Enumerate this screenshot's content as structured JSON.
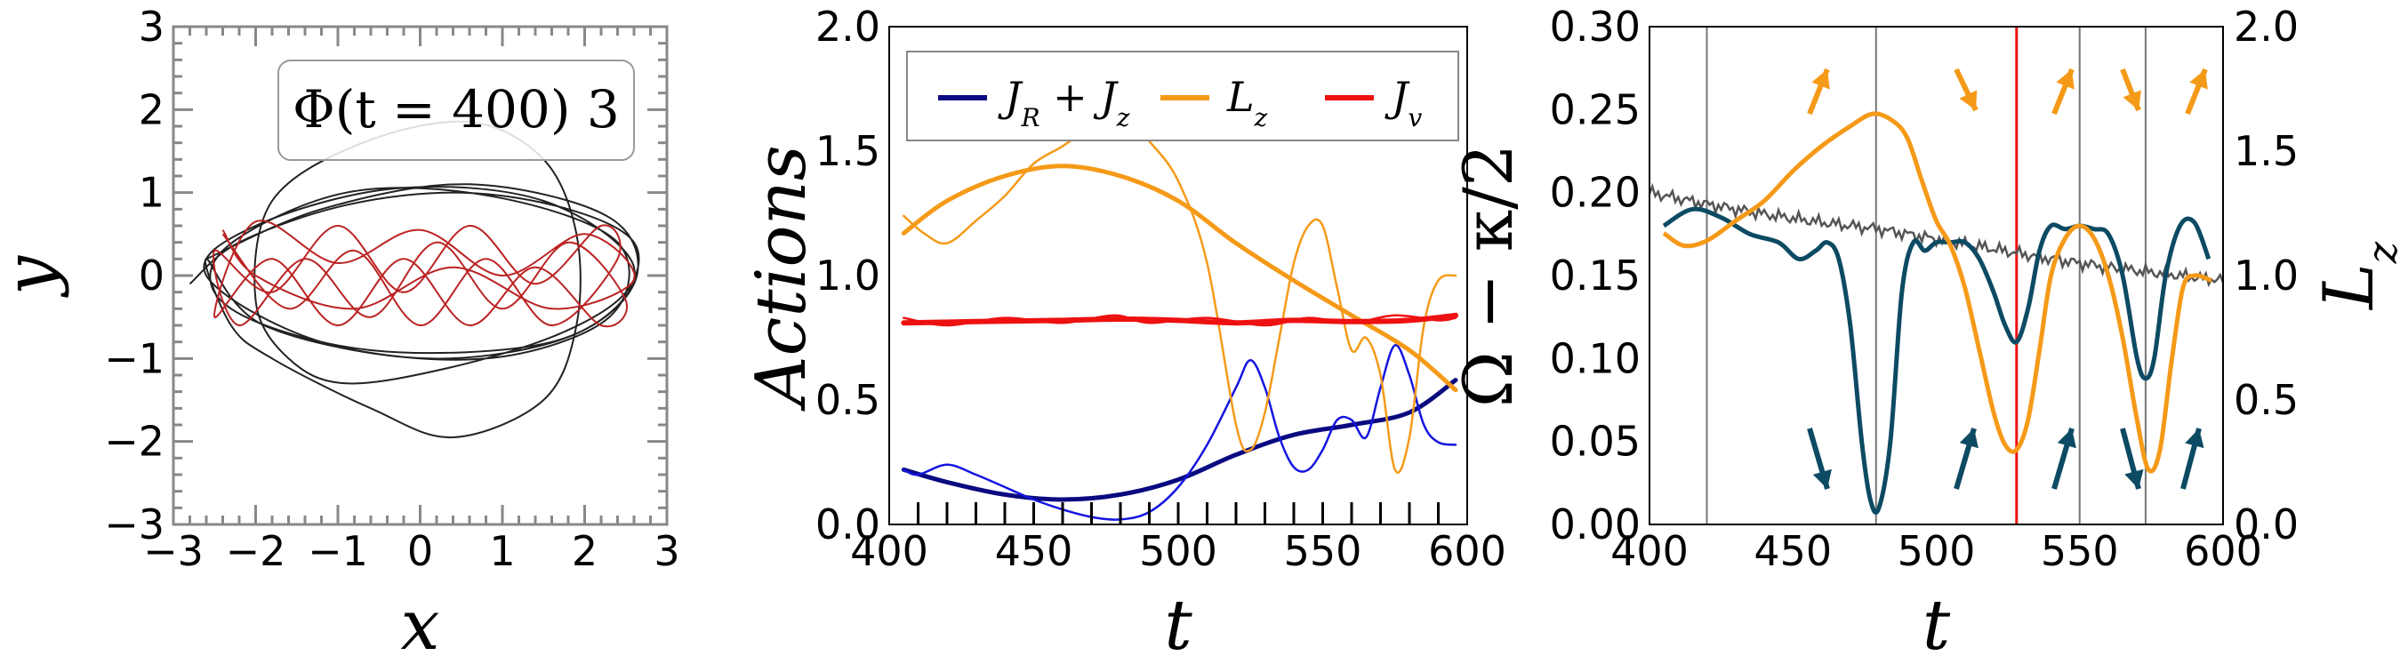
{
  "chart_data": [
    {
      "type": "line",
      "panel": "orbit",
      "xlabel": "x",
      "ylabel": "y",
      "xlim": [
        -3,
        3
      ],
      "ylim": [
        -3,
        3
      ],
      "xticks": [
        "−3",
        "−2",
        "−1",
        "0",
        "1",
        "2",
        "3"
      ],
      "yticks": [
        "−3",
        "−2",
        "−1",
        "0",
        "1",
        "2",
        "3"
      ],
      "annotation": "Φ(t = 400) 3",
      "series": [
        {
          "color": "#222222",
          "points": [
            [
              -2.6,
              0.2
            ],
            [
              -1.2,
              0.8
            ],
            [
              0.6,
              1.1
            ],
            [
              2.3,
              0.7
            ],
            [
              2.6,
              -0.1
            ],
            [
              1.6,
              -0.8
            ],
            [
              -0.6,
              -0.9
            ],
            [
              -2.3,
              -0.4
            ],
            [
              -2.4,
              0.3
            ],
            [
              -0.9,
              1.0
            ],
            [
              0.9,
              0.95
            ],
            [
              2.4,
              0.4
            ],
            [
              2.3,
              -0.5
            ],
            [
              0.8,
              -1.0
            ],
            [
              -1.2,
              -0.8
            ],
            [
              -2.6,
              0.0
            ],
            [
              -2.0,
              0.6
            ],
            [
              -0.3,
              1.05
            ],
            [
              1.5,
              0.9
            ],
            [
              2.6,
              0.1
            ],
            [
              1.9,
              -0.7
            ],
            [
              0.1,
              -1.0
            ],
            [
              -1.9,
              -0.6
            ],
            [
              -2.6,
              0.2
            ],
            [
              -2.3,
              -0.6
            ],
            [
              -1.8,
              -1.0
            ],
            [
              -0.6,
              -1.6
            ],
            [
              0.4,
              -1.95
            ],
            [
              1.5,
              -1.5
            ],
            [
              1.9,
              -0.6
            ],
            [
              1.9,
              0.5
            ],
            [
              1.5,
              1.4
            ],
            [
              0.6,
              1.85
            ],
            [
              -0.7,
              1.6
            ],
            [
              -1.8,
              0.9
            ],
            [
              -2.0,
              -0.3
            ],
            [
              -1.6,
              -1.0
            ],
            [
              -0.9,
              -1.3
            ],
            [
              0.4,
              -1.1
            ],
            [
              1.7,
              -0.7
            ],
            [
              2.5,
              -0.2
            ],
            [
              2.6,
              0.4
            ],
            [
              1.8,
              0.8
            ],
            [
              0.5,
              1.0
            ],
            [
              -0.9,
              0.85
            ],
            [
              -2.2,
              0.4
            ],
            [
              -2.8,
              -0.1
            ]
          ]
        },
        {
          "color": "#bb2222",
          "points": [
            [
              -2.4,
              0.5
            ],
            [
              -1.6,
              -0.4
            ],
            [
              -0.8,
              0.3
            ],
            [
              0.0,
              -0.6
            ],
            [
              0.8,
              0.2
            ],
            [
              1.6,
              -0.6
            ],
            [
              2.4,
              0.2
            ],
            [
              2.2,
              0.6
            ],
            [
              1.4,
              -0.1
            ],
            [
              0.6,
              0.6
            ],
            [
              -0.2,
              -0.2
            ],
            [
              -1.0,
              0.6
            ],
            [
              -1.8,
              -0.2
            ],
            [
              -2.5,
              0.3
            ],
            [
              -2.2,
              -0.6
            ],
            [
              -1.4,
              0.2
            ],
            [
              -0.6,
              -0.5
            ],
            [
              0.2,
              0.4
            ],
            [
              1.0,
              -0.4
            ],
            [
              1.8,
              0.4
            ],
            [
              2.5,
              -0.3
            ],
            [
              2.2,
              -0.6
            ],
            [
              1.4,
              0.1
            ],
            [
              0.6,
              -0.6
            ],
            [
              -0.2,
              0.2
            ],
            [
              -1.0,
              -0.6
            ],
            [
              -1.8,
              0.2
            ],
            [
              -2.5,
              -0.5
            ],
            [
              -2.0,
              0.65
            ],
            [
              -1.0,
              0.15
            ],
            [
              0.0,
              0.55
            ],
            [
              1.0,
              0.0
            ],
            [
              2.0,
              0.5
            ],
            [
              2.6,
              -0.05
            ],
            [
              1.6,
              -0.4
            ],
            [
              0.4,
              0.1
            ],
            [
              -0.8,
              -0.4
            ],
            [
              -2.0,
              0.0
            ],
            [
              -2.4,
              0.55
            ]
          ]
        }
      ]
    },
    {
      "type": "line",
      "panel": "actions",
      "xlabel": "t",
      "ylabel": "Actions",
      "xlim": [
        400,
        600
      ],
      "ylim": [
        0,
        2
      ],
      "xticks": [
        "400",
        "450",
        "500",
        "550",
        "600"
      ],
      "yticks": [
        "0.0",
        "0.5",
        "1.0",
        "1.5",
        "2.0"
      ],
      "legend": [
        "J_R + J_z",
        "L_z",
        "J_v"
      ],
      "legend_loc": "top",
      "series": [
        {
          "name": "J_R + J_z",
          "color": "#0a0a80",
          "width": 5,
          "x": [
            405,
            420,
            440,
            460,
            480,
            500,
            520,
            540,
            560,
            580,
            596
          ],
          "y": [
            0.22,
            0.17,
            0.12,
            0.1,
            0.12,
            0.18,
            0.28,
            0.36,
            0.4,
            0.45,
            0.58
          ]
        },
        {
          "name": "J_R + J_z",
          "color": "#1515e0",
          "width": 2.5,
          "x": [
            405,
            410,
            420,
            430,
            440,
            450,
            460,
            470,
            480,
            490,
            500,
            510,
            520,
            525,
            530,
            535,
            540,
            545,
            550,
            555,
            560,
            565,
            570,
            575,
            580,
            585,
            590,
            596
          ],
          "y": [
            0.22,
            0.2,
            0.24,
            0.2,
            0.15,
            0.1,
            0.06,
            0.03,
            0.02,
            0.05,
            0.15,
            0.32,
            0.55,
            0.66,
            0.55,
            0.35,
            0.23,
            0.22,
            0.3,
            0.42,
            0.42,
            0.35,
            0.55,
            0.72,
            0.6,
            0.4,
            0.33,
            0.32
          ]
        },
        {
          "name": "L_z",
          "color": "#f59a18",
          "width": 5,
          "x": [
            405,
            420,
            440,
            460,
            480,
            500,
            520,
            540,
            560,
            580,
            596
          ],
          "y": [
            1.17,
            1.3,
            1.4,
            1.44,
            1.4,
            1.3,
            1.13,
            0.98,
            0.84,
            0.7,
            0.54
          ]
        },
        {
          "name": "L_z",
          "color": "#f59a18",
          "width": 2.5,
          "x": [
            405,
            412,
            420,
            430,
            440,
            450,
            460,
            470,
            478,
            485,
            490,
            500,
            510,
            520,
            525,
            530,
            535,
            540,
            545,
            550,
            555,
            560,
            565,
            570,
            575,
            580,
            585,
            590,
            596
          ],
          "y": [
            1.24,
            1.17,
            1.13,
            1.22,
            1.32,
            1.45,
            1.52,
            1.6,
            1.65,
            1.6,
            1.54,
            1.38,
            1.05,
            0.4,
            0.3,
            0.45,
            0.75,
            1.05,
            1.2,
            1.2,
            0.95,
            0.7,
            0.75,
            0.6,
            0.22,
            0.35,
            0.8,
            0.98,
            1.0
          ]
        },
        {
          "name": "J_v",
          "color": "#ee1111",
          "width": 6,
          "x": [
            405,
            430,
            460,
            480,
            500,
            520,
            540,
            560,
            580,
            596
          ],
          "y": [
            0.81,
            0.815,
            0.82,
            0.825,
            0.82,
            0.81,
            0.82,
            0.815,
            0.82,
            0.84
          ]
        },
        {
          "name": "J_v",
          "color": "#ee1111",
          "width": 2.5,
          "x": [
            405,
            420,
            440,
            460,
            478,
            490,
            510,
            530,
            545,
            560,
            575,
            590,
            596
          ],
          "y": [
            0.83,
            0.8,
            0.83,
            0.81,
            0.84,
            0.81,
            0.83,
            0.8,
            0.83,
            0.81,
            0.84,
            0.82,
            0.83
          ]
        }
      ]
    },
    {
      "type": "line",
      "panel": "frequency",
      "xlabel": "t",
      "ylabel": "Ω − κ/2",
      "ylabel_right": "L_z",
      "xlim": [
        400,
        600
      ],
      "ylim": [
        0,
        0.3
      ],
      "ylim_right": [
        0,
        2
      ],
      "xticks": [
        "400",
        "450",
        "500",
        "550",
        "600"
      ],
      "yticks": [
        "0.00",
        "0.05",
        "0.10",
        "0.15",
        "0.20",
        "0.25",
        "0.30"
      ],
      "yticks_right": [
        "0.0",
        "0.5",
        "1.0",
        "1.5",
        "2.0"
      ],
      "vlines_gray": [
        420,
        479,
        550,
        573
      ],
      "vline_red": 528,
      "series": [
        {
          "color": "#555555",
          "width": 2.5,
          "axis": "left",
          "x": [
            400,
            420,
            440,
            460,
            480,
            500,
            520,
            540,
            560,
            580,
            600
          ],
          "y": [
            0.2,
            0.193,
            0.187,
            0.182,
            0.178,
            0.172,
            0.166,
            0.16,
            0.155,
            0.151,
            0.147
          ],
          "noise": true
        },
        {
          "color": "#0d4a63",
          "width": 5,
          "axis": "left",
          "x": [
            405,
            415,
            425,
            435,
            445,
            452,
            458,
            462,
            466,
            470,
            474,
            477,
            480,
            484,
            488,
            492,
            496,
            500,
            505,
            510,
            515,
            520,
            524,
            528,
            532,
            536,
            540,
            545,
            550,
            555,
            560,
            565,
            570,
            573,
            576,
            580,
            585,
            590,
            595
          ],
          "y": [
            0.18,
            0.19,
            0.185,
            0.175,
            0.17,
            0.16,
            0.165,
            0.17,
            0.16,
            0.12,
            0.05,
            0.015,
            0.01,
            0.05,
            0.14,
            0.17,
            0.165,
            0.17,
            0.17,
            0.17,
            0.16,
            0.14,
            0.12,
            0.11,
            0.13,
            0.165,
            0.18,
            0.178,
            0.18,
            0.178,
            0.175,
            0.15,
            0.1,
            0.088,
            0.1,
            0.15,
            0.18,
            0.182,
            0.16
          ]
        },
        {
          "color": "#f59a18",
          "width": 5,
          "axis": "right",
          "x": [
            405,
            412,
            420,
            430,
            440,
            450,
            460,
            470,
            478,
            485,
            490,
            495,
            500,
            505,
            510,
            515,
            520,
            524,
            528,
            532,
            536,
            540,
            545,
            550,
            555,
            560,
            565,
            570,
            574,
            578,
            582,
            586,
            590,
            596
          ],
          "y": [
            1.17,
            1.12,
            1.14,
            1.22,
            1.3,
            1.42,
            1.52,
            1.6,
            1.65,
            1.62,
            1.55,
            1.38,
            1.22,
            1.12,
            0.95,
            0.7,
            0.45,
            0.32,
            0.3,
            0.42,
            0.7,
            1.0,
            1.15,
            1.2,
            1.15,
            1.0,
            0.75,
            0.42,
            0.22,
            0.3,
            0.65,
            0.95,
            1.0,
            0.98
          ]
        }
      ],
      "arrows_orange": [
        [
          455,
          0.27,
          460,
          0.25,
          "up"
        ],
        [
          505,
          0.27,
          510,
          0.25,
          "down"
        ],
        [
          543,
          0.27,
          548,
          0.25,
          "up"
        ],
        [
          570,
          0.27,
          575,
          0.25,
          "down"
        ],
        [
          590,
          0.27,
          595,
          0.25,
          "up"
        ]
      ],
      "arrows_blue": [
        [
          450,
          0.05,
          455,
          0.07,
          "down"
        ],
        [
          490,
          0.07,
          495,
          0.05,
          "up"
        ],
        [
          534,
          0.07,
          539,
          0.05,
          "up"
        ],
        [
          565,
          0.05,
          570,
          0.07,
          "down"
        ],
        [
          582,
          0.07,
          587,
          0.05,
          "up"
        ]
      ]
    }
  ]
}
